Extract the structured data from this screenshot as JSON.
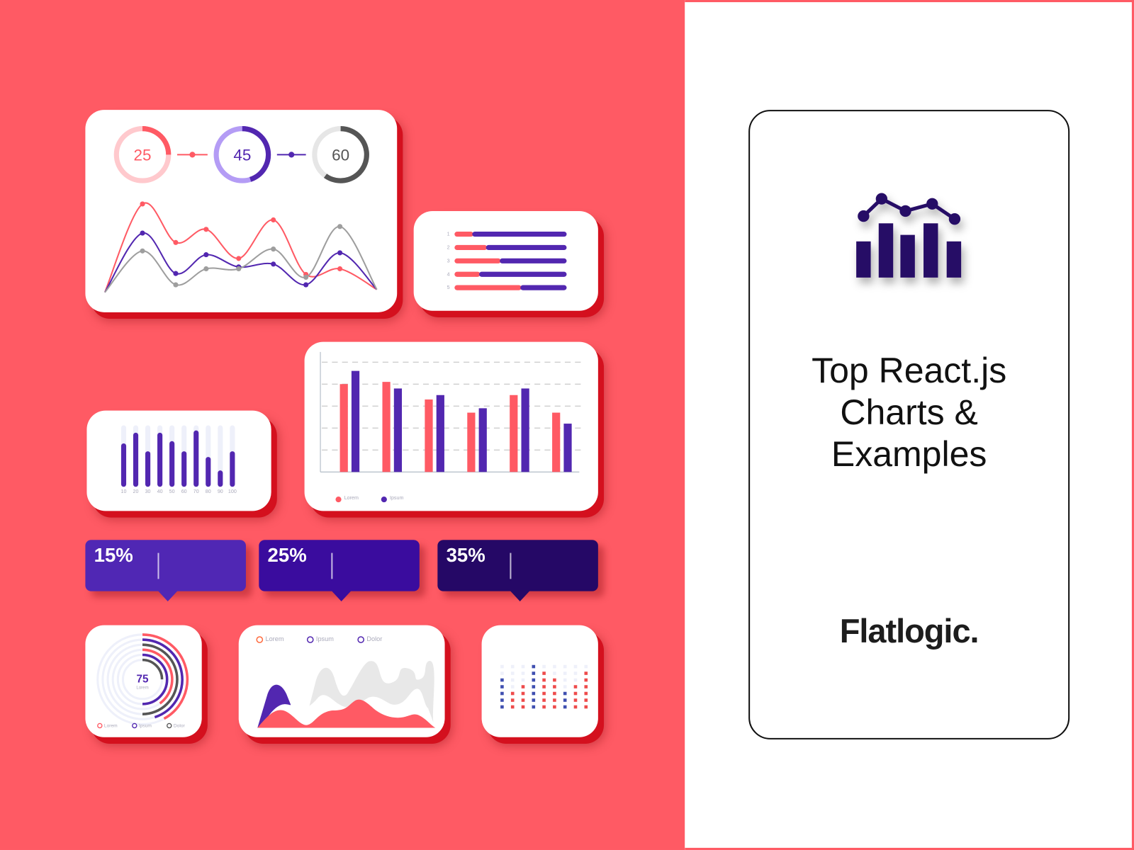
{
  "colors": {
    "background": "#FF5A64",
    "red": "#FF5A64",
    "purple": "#5227B0",
    "dark_purple": "#250866",
    "gray": "#9E9E9E",
    "track": "#EEF0FA"
  },
  "donuts": [
    {
      "value": 25,
      "label": "25",
      "color": "#FF5A64",
      "track": "#FFC9CD"
    },
    {
      "value": 45,
      "label": "45",
      "color": "#5227B0",
      "track": "#B49CF5"
    },
    {
      "value": 60,
      "label": "60",
      "color": "#555555",
      "track": "#E6E6E6"
    }
  ],
  "line_card": {
    "series": [
      {
        "color": "#FF5A64",
        "values": [
          2,
          96,
          55,
          69,
          38,
          79,
          21,
          27,
          5
        ]
      },
      {
        "color": "#5227B0",
        "values": [
          2,
          65,
          22,
          42,
          29,
          32,
          10,
          44,
          5
        ]
      },
      {
        "color": "#9E9E9E",
        "values": [
          2,
          46,
          10,
          27,
          27,
          48,
          18,
          72,
          5
        ]
      }
    ]
  },
  "bar_list": {
    "labels": [
      "1",
      "2",
      "3",
      "4",
      "5"
    ],
    "red": [
      10,
      20,
      30,
      15,
      45
    ],
    "purple": [
      65,
      55,
      45,
      60,
      30
    ]
  },
  "vertical_bars": {
    "labels": [
      "10",
      "20",
      "30",
      "40",
      "50",
      "60",
      "70",
      "80",
      "90",
      "100"
    ],
    "values": [
      68,
      87,
      54,
      87,
      72,
      54,
      91,
      44,
      20,
      54
    ]
  },
  "grouped_bars": {
    "max": 5,
    "red": [
      4.0,
      4.1,
      3.3,
      2.7,
      3.5,
      2.7
    ],
    "purple": [
      4.6,
      3.8,
      3.5,
      2.9,
      3.8,
      2.2
    ],
    "legend": [
      "Lorem",
      "Ipsum"
    ]
  },
  "tooltips": [
    {
      "label": "15%",
      "color": "#5027B4"
    },
    {
      "label": "25%",
      "color": "#3A0C9E"
    },
    {
      "label": "35%",
      "color": "#250866"
    }
  ],
  "radial": {
    "value": "75",
    "caption": "Lorem",
    "arcs": [
      0.42,
      0.45,
      0.5,
      0.4,
      0.5,
      0.25
    ],
    "arc_colors": [
      "#FF5A64",
      "#5227B0",
      "#555555",
      "#FF5A64",
      "#5227B0",
      "#555555"
    ],
    "legend": [
      {
        "label": "Lorem",
        "color": "#FF5A64"
      },
      {
        "label": "Ipsum",
        "color": "#5227B0"
      },
      {
        "label": "Dolor",
        "color": "#555555"
      }
    ]
  },
  "area_card": {
    "legend": [
      {
        "label": "Lorem",
        "color": "#FF6A3D"
      },
      {
        "label": "Ipsum",
        "color": "#5227B0"
      },
      {
        "label": "Dolor",
        "color": "#5227B0"
      }
    ]
  },
  "dot_matrix": {
    "heights": [
      5,
      3,
      4,
      7,
      6,
      5,
      3,
      4,
      6
    ],
    "colors": [
      "#3F4FB0",
      "#EE4B4B",
      "#EE4B4B",
      "#3F4FB0",
      "#EE4B4B",
      "#EE4B4B",
      "#3F4FB0",
      "#EE4B4B",
      "#EE4B4B"
    ],
    "rows": 7
  },
  "promo": {
    "title_lines": [
      "Top React.js",
      "Charts &",
      "Examples"
    ],
    "brand": "Flatlogic."
  }
}
